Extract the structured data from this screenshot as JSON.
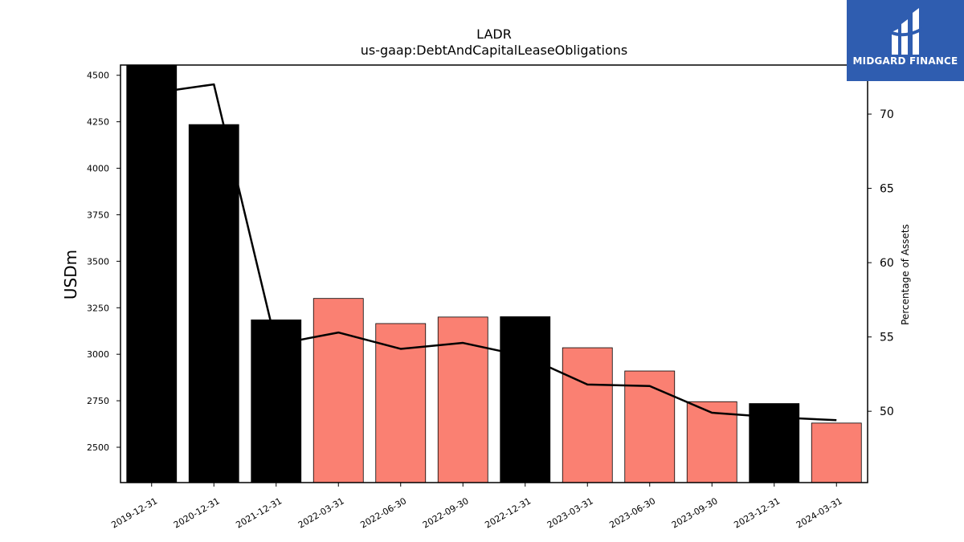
{
  "chart_data": {
    "type": "bar",
    "title": "LADR",
    "subtitle": "us-gaap:DebtAndCapitalLeaseObligations",
    "ylabel": "USDm",
    "y2label": "Percentage of Assets",
    "categories": [
      "2019-12-31",
      "2020-12-31",
      "2021-12-31",
      "2022-03-31",
      "2022-06-30",
      "2022-09-30",
      "2022-12-31",
      "2023-03-31",
      "2023-06-30",
      "2023-09-30",
      "2023-12-31",
      "2024-03-31"
    ],
    "values": [
      4560,
      4235,
      3185,
      3300,
      3165,
      3200,
      3202,
      3035,
      2910,
      2745,
      2735,
      2630
    ],
    "bar_colors": [
      "#000000",
      "#000000",
      "#000000",
      "#fa8072",
      "#fa8072",
      "#fa8072",
      "#000000",
      "#fa8072",
      "#fa8072",
      "#fa8072",
      "#000000",
      "#fa8072"
    ],
    "line_series": {
      "values": [
        71.4,
        72.0,
        54.5,
        55.3,
        54.2,
        54.6,
        53.7,
        51.8,
        51.7,
        49.9,
        49.6,
        49.4
      ],
      "color": "#000000"
    },
    "ylim": [
      2310,
      4555
    ],
    "yticks": [
      2500,
      2750,
      3000,
      3250,
      3500,
      3750,
      4000,
      4250,
      4500
    ],
    "y2lim": [
      45.2,
      73.3
    ],
    "y2ticks": [
      50,
      55,
      60,
      65,
      70
    ],
    "grid": false
  },
  "logo": {
    "text": "MIDGARD FINANCE",
    "bg_color": "#2f5db0"
  }
}
